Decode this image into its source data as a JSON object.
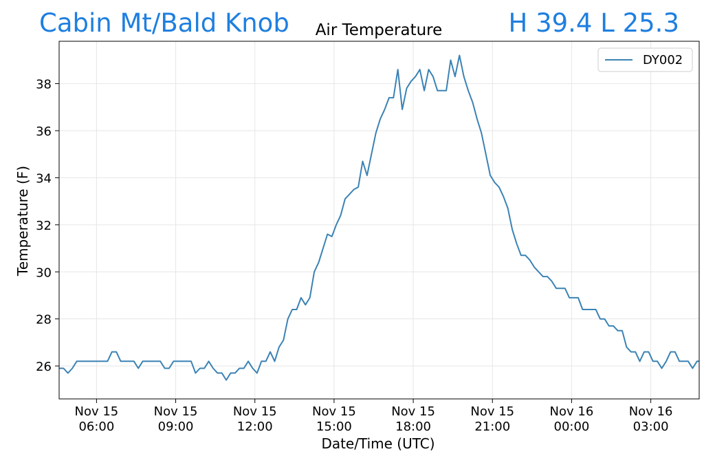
{
  "header": {
    "station": "Cabin Mt/Bald Knob",
    "hilo": "H 39.4 L 25.3",
    "accent_color": "#1e7fe0"
  },
  "chart_data": {
    "type": "line",
    "title": "Air Temperature",
    "xlabel": "Date/Time (UTC)",
    "ylabel": "Temperature (F)",
    "xlim": [
      "2019-11-15T04:35",
      "2019-11-16T04:50"
    ],
    "ylim": [
      24.6,
      39.8
    ],
    "x_ticks": [
      {
        "t": "2019-11-15T06:00",
        "line1": "Nov 15",
        "line2": "06:00"
      },
      {
        "t": "2019-11-15T09:00",
        "line1": "Nov 15",
        "line2": "09:00"
      },
      {
        "t": "2019-11-15T12:00",
        "line1": "Nov 15",
        "line2": "12:00"
      },
      {
        "t": "2019-11-15T15:00",
        "line1": "Nov 15",
        "line2": "15:00"
      },
      {
        "t": "2019-11-15T18:00",
        "line1": "Nov 15",
        "line2": "18:00"
      },
      {
        "t": "2019-11-15T21:00",
        "line1": "Nov 15",
        "line2": "21:00"
      },
      {
        "t": "2019-11-16T00:00",
        "line1": "Nov 16",
        "line2": "00:00"
      },
      {
        "t": "2019-11-16T03:00",
        "line1": "Nov 16",
        "line2": "03:00"
      }
    ],
    "y_ticks": [
      26,
      28,
      30,
      32,
      34,
      36,
      38
    ],
    "grid": true,
    "legend": "top-right",
    "series": [
      {
        "name": "DY002",
        "color": "#3a82b4",
        "x": [
          "2019-11-15T04:35",
          "2019-11-15T04:45",
          "2019-11-15T04:55",
          "2019-11-15T05:05",
          "2019-11-15T05:15",
          "2019-11-15T05:25",
          "2019-11-15T05:35",
          "2019-11-15T05:45",
          "2019-11-15T05:55",
          "2019-11-15T06:05",
          "2019-11-15T06:15",
          "2019-11-15T06:25",
          "2019-11-15T06:35",
          "2019-11-15T06:45",
          "2019-11-15T06:55",
          "2019-11-15T07:05",
          "2019-11-15T07:15",
          "2019-11-15T07:25",
          "2019-11-15T07:35",
          "2019-11-15T07:45",
          "2019-11-15T07:55",
          "2019-11-15T08:05",
          "2019-11-15T08:15",
          "2019-11-15T08:25",
          "2019-11-15T08:35",
          "2019-11-15T08:45",
          "2019-11-15T08:55",
          "2019-11-15T09:05",
          "2019-11-15T09:15",
          "2019-11-15T09:25",
          "2019-11-15T09:35",
          "2019-11-15T09:45",
          "2019-11-15T09:55",
          "2019-11-15T10:05",
          "2019-11-15T10:15",
          "2019-11-15T10:25",
          "2019-11-15T10:35",
          "2019-11-15T10:45",
          "2019-11-15T10:55",
          "2019-11-15T11:05",
          "2019-11-15T11:15",
          "2019-11-15T11:25",
          "2019-11-15T11:35",
          "2019-11-15T11:45",
          "2019-11-15T11:55",
          "2019-11-15T12:05",
          "2019-11-15T12:15",
          "2019-11-15T12:25",
          "2019-11-15T12:35",
          "2019-11-15T12:45",
          "2019-11-15T12:55",
          "2019-11-15T13:05",
          "2019-11-15T13:15",
          "2019-11-15T13:25",
          "2019-11-15T13:35",
          "2019-11-15T13:45",
          "2019-11-15T13:55",
          "2019-11-15T14:05",
          "2019-11-15T14:15",
          "2019-11-15T14:25",
          "2019-11-15T14:35",
          "2019-11-15T14:45",
          "2019-11-15T14:55",
          "2019-11-15T15:05",
          "2019-11-15T15:15",
          "2019-11-15T15:25",
          "2019-11-15T15:35",
          "2019-11-15T15:45",
          "2019-11-15T15:55",
          "2019-11-15T16:05",
          "2019-11-15T16:15",
          "2019-11-15T16:25",
          "2019-11-15T16:35",
          "2019-11-15T16:45",
          "2019-11-15T16:55",
          "2019-11-15T17:05",
          "2019-11-15T17:15",
          "2019-11-15T17:25",
          "2019-11-15T17:35",
          "2019-11-15T17:45",
          "2019-11-15T17:55",
          "2019-11-15T18:05",
          "2019-11-15T18:15",
          "2019-11-15T18:25",
          "2019-11-15T18:35",
          "2019-11-15T18:45",
          "2019-11-15T18:55",
          "2019-11-15T19:05",
          "2019-11-15T19:15",
          "2019-11-15T19:25",
          "2019-11-15T19:35",
          "2019-11-15T19:45",
          "2019-11-15T19:55",
          "2019-11-15T20:05",
          "2019-11-15T20:15",
          "2019-11-15T20:25",
          "2019-11-15T20:35",
          "2019-11-15T20:45",
          "2019-11-15T20:55",
          "2019-11-15T21:05",
          "2019-11-15T21:15",
          "2019-11-15T21:25",
          "2019-11-15T21:35",
          "2019-11-15T21:45",
          "2019-11-15T21:55",
          "2019-11-15T22:05",
          "2019-11-15T22:15",
          "2019-11-15T22:25",
          "2019-11-15T22:35",
          "2019-11-15T22:45",
          "2019-11-15T22:55",
          "2019-11-15T23:05",
          "2019-11-15T23:15",
          "2019-11-15T23:25",
          "2019-11-15T23:35",
          "2019-11-15T23:45",
          "2019-11-15T23:55",
          "2019-11-16T00:05",
          "2019-11-16T00:15",
          "2019-11-16T00:25",
          "2019-11-16T00:35",
          "2019-11-16T00:45",
          "2019-11-16T00:55",
          "2019-11-16T01:05",
          "2019-11-16T01:15",
          "2019-11-16T01:25",
          "2019-11-16T01:35",
          "2019-11-16T01:45",
          "2019-11-16T01:55",
          "2019-11-16T02:05",
          "2019-11-16T02:15",
          "2019-11-16T02:25",
          "2019-11-16T02:35",
          "2019-11-16T02:45",
          "2019-11-16T02:55",
          "2019-11-16T03:05",
          "2019-11-16T03:15",
          "2019-11-16T03:25",
          "2019-11-16T03:35",
          "2019-11-16T03:45",
          "2019-11-16T03:55",
          "2019-11-16T04:05",
          "2019-11-16T04:15",
          "2019-11-16T04:25",
          "2019-11-16T04:35",
          "2019-11-16T04:45",
          "2019-11-16T04:50"
        ],
        "y": [
          25.9,
          25.9,
          25.7,
          25.9,
          26.2,
          26.2,
          26.2,
          26.2,
          26.2,
          26.2,
          26.2,
          26.2,
          26.6,
          26.6,
          26.2,
          26.2,
          26.2,
          26.2,
          25.9,
          26.2,
          26.2,
          26.2,
          26.2,
          26.2,
          25.9,
          25.9,
          26.2,
          26.2,
          26.2,
          26.2,
          26.2,
          25.7,
          25.9,
          25.9,
          26.2,
          25.9,
          25.7,
          25.7,
          25.4,
          25.7,
          25.7,
          25.9,
          25.9,
          26.2,
          25.9,
          25.7,
          26.2,
          26.2,
          26.6,
          26.2,
          26.8,
          27.1,
          28.0,
          28.4,
          28.4,
          28.9,
          28.6,
          28.9,
          30.0,
          30.4,
          31.0,
          31.6,
          31.5,
          32.0,
          32.4,
          33.1,
          33.3,
          33.5,
          33.6,
          34.7,
          34.1,
          35.0,
          35.9,
          36.5,
          36.9,
          37.4,
          37.4,
          38.6,
          36.9,
          37.8,
          38.1,
          38.3,
          38.6,
          37.7,
          38.6,
          38.3,
          37.7,
          37.7,
          37.7,
          39.0,
          38.3,
          39.2,
          38.3,
          37.7,
          37.2,
          36.5,
          35.9,
          35.0,
          34.1,
          33.8,
          33.6,
          33.2,
          32.7,
          31.8,
          31.2,
          30.7,
          30.7,
          30.5,
          30.2,
          30.0,
          29.8,
          29.8,
          29.6,
          29.3,
          29.3,
          29.3,
          28.9,
          28.9,
          28.9,
          28.4,
          28.4,
          28.4,
          28.4,
          28.0,
          28.0,
          27.7,
          27.7,
          27.5,
          27.5,
          26.8,
          26.6,
          26.6,
          26.2,
          26.6,
          26.6,
          26.2,
          26.2,
          25.9,
          26.2,
          26.6,
          26.6,
          26.2,
          26.2,
          26.2,
          25.9,
          26.2,
          26.2
        ]
      }
    ]
  }
}
